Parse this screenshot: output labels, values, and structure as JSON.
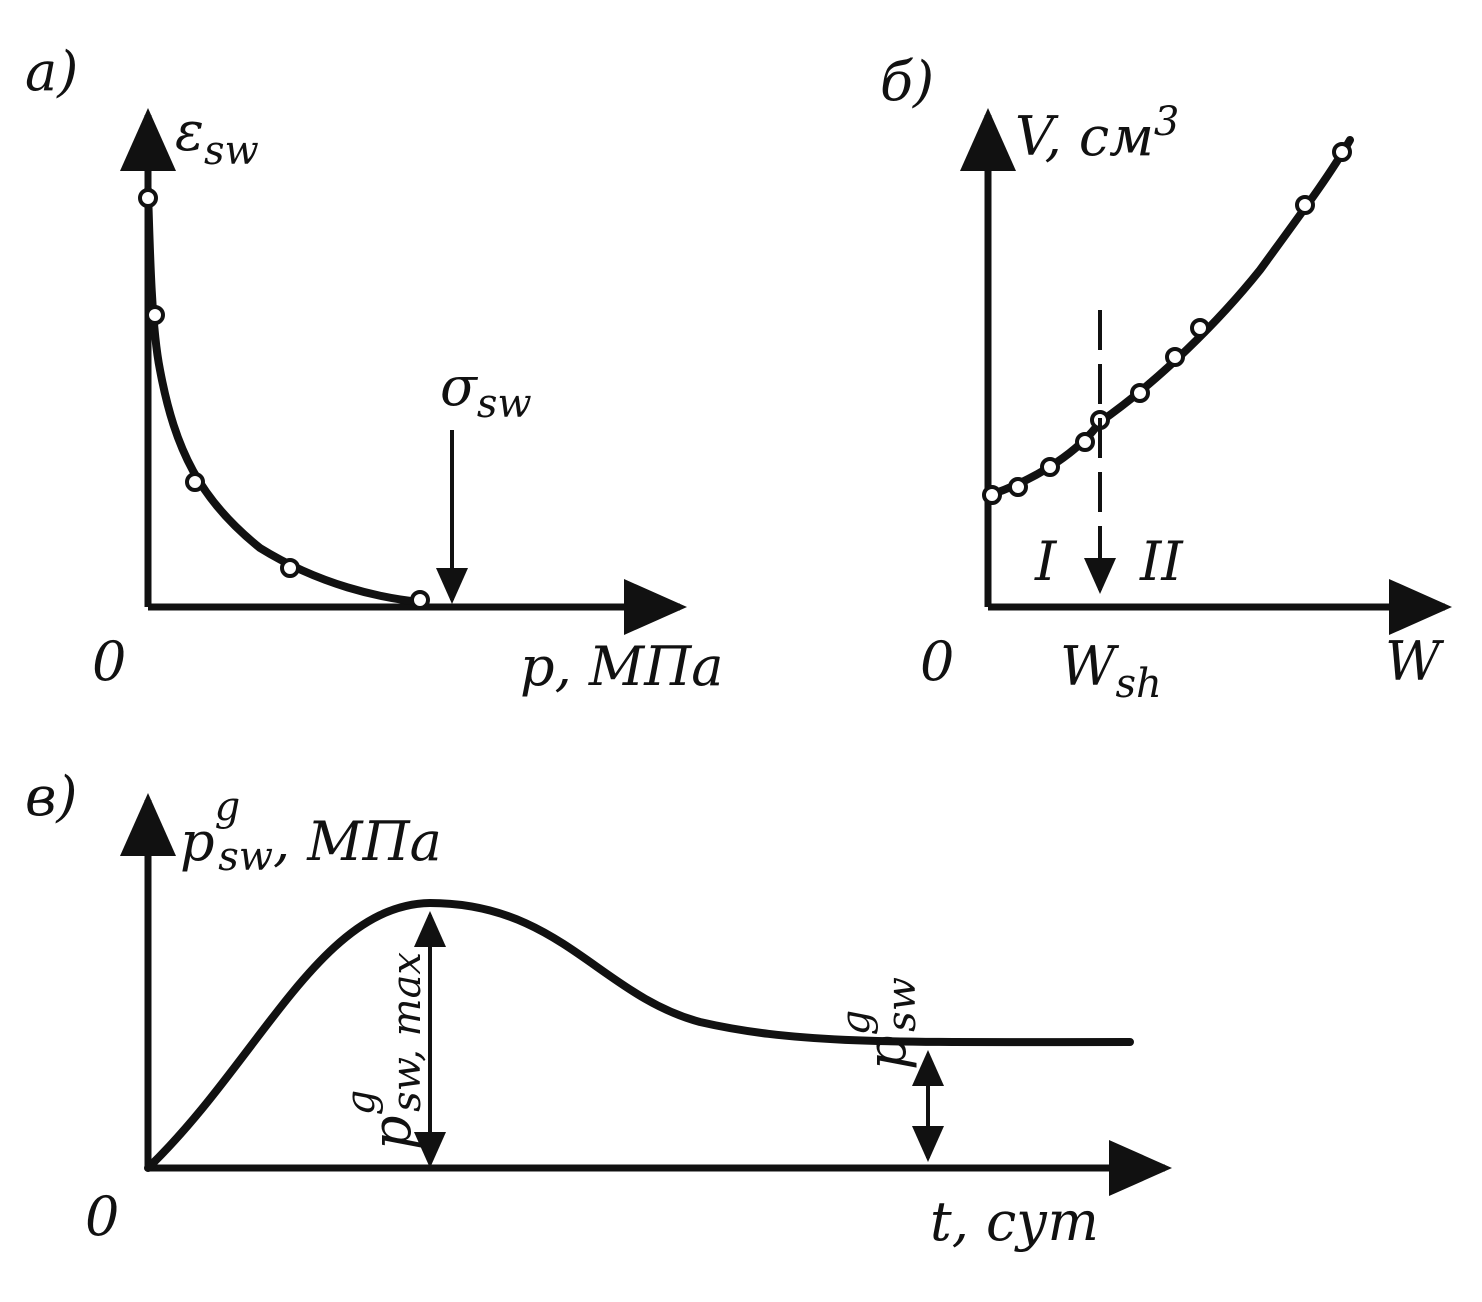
{
  "panels": [
    {
      "label": "а)",
      "y_axis": {
        "symbol": "ε",
        "sub": "sw"
      },
      "x_axis": {
        "symbol": "p",
        "unit": ", МПа"
      },
      "origin": "0",
      "marker": {
        "symbol": "σ",
        "sub": "sw"
      }
    },
    {
      "label": "б)",
      "y_axis": {
        "symbol": "V",
        "unit": ", см",
        "sup": "3"
      },
      "x_axis": {
        "symbol": "W"
      },
      "origin": "0",
      "marker": {
        "symbol": "W",
        "sub": "sh"
      },
      "zones": [
        "I",
        "II"
      ]
    },
    {
      "label": "в)",
      "y_axis": {
        "symbol": "p",
        "sup": "g",
        "sub": "sw",
        "unit": ", МПа"
      },
      "x_axis": {
        "symbol": "t",
        "unit": ", сут"
      },
      "origin": "0",
      "peak": {
        "symbol": "p",
        "sup": "g",
        "sub": "sw, max"
      },
      "steady": {
        "symbol": "p",
        "sup": "g",
        "sub": "sw"
      }
    }
  ]
}
